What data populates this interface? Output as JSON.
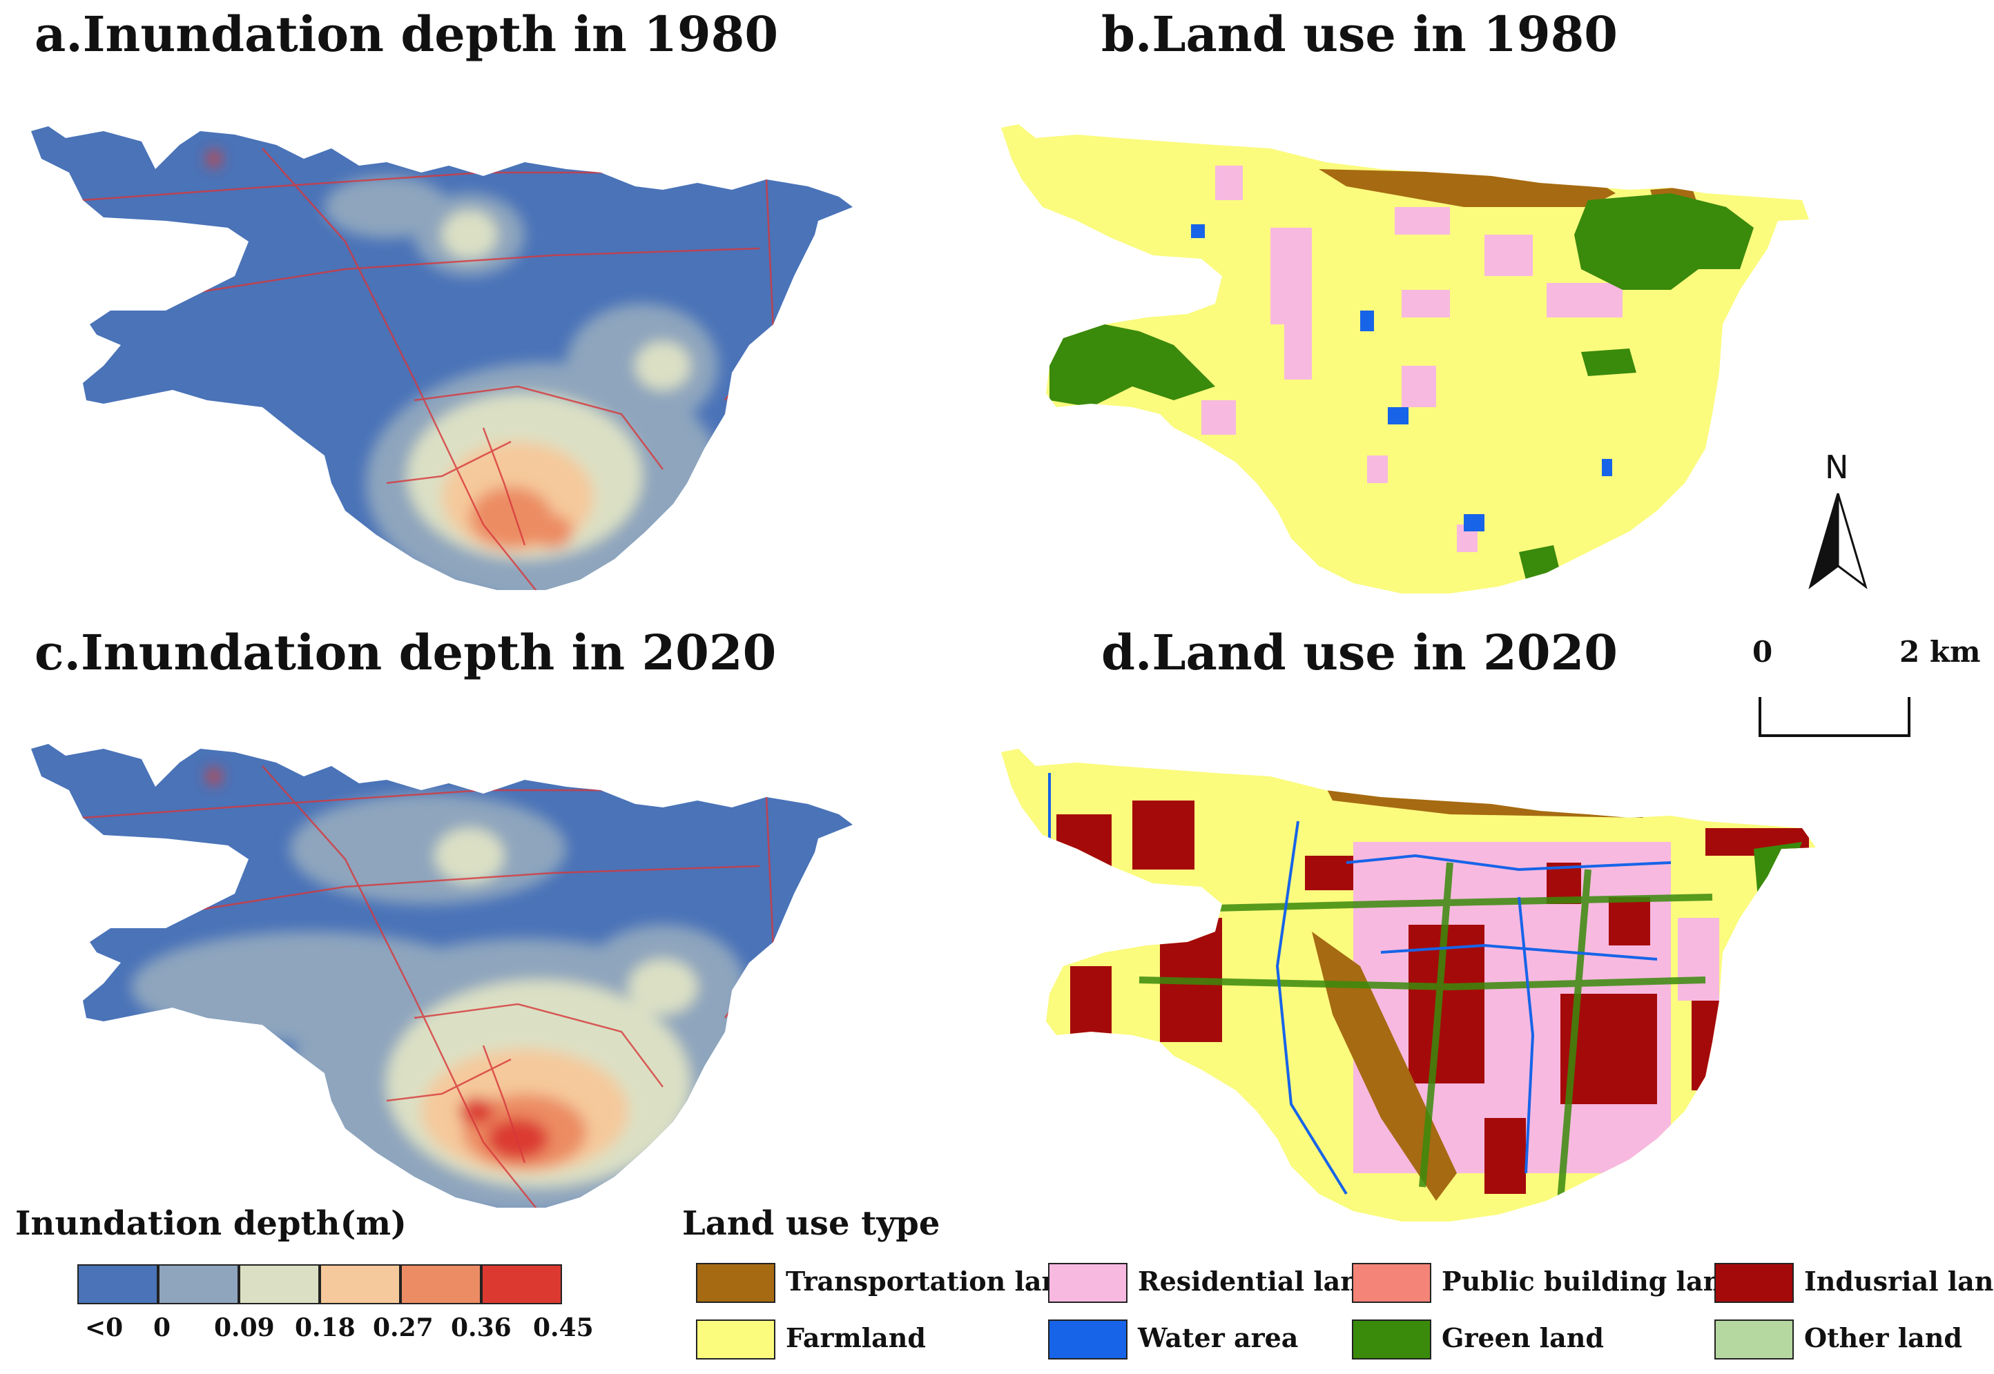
{
  "titles": {
    "a": "a.Inundation depth in 1980",
    "b": "b.Land use in 1980",
    "c": "c.Inundation depth in 2020",
    "d": "d.Land use in 2020"
  },
  "depth_legend": {
    "title": "Inundation depth(m)",
    "colors": [
      "#4a73b8",
      "#8ea5bd",
      "#dbe0c4",
      "#f5c99b",
      "#ec8c64",
      "#dc3a30"
    ],
    "labels": [
      "<0",
      "0",
      "0.09",
      "0.18",
      "0.27",
      "0.36",
      "0.45"
    ]
  },
  "landuse_legend": {
    "title": "Land use type",
    "items": [
      {
        "label": "Transportation land",
        "color": "#a66a12"
      },
      {
        "label": "Residential land",
        "color": "#f7b9e0"
      },
      {
        "label": "Public building land",
        "color": "#f48478"
      },
      {
        "label": "Indusrial land",
        "color": "#a50a0a"
      },
      {
        "label": "Farmland",
        "color": "#fbfb7e"
      },
      {
        "label": "Water area",
        "color": "#1764e8"
      },
      {
        "label": "Green land",
        "color": "#3a8a0c"
      },
      {
        "label": "Other land",
        "color": "#b5d8a0"
      }
    ]
  },
  "north_arrow": {
    "label": "N"
  },
  "scale_bar": {
    "start": "0",
    "end": "2 km"
  },
  "colors": {
    "road": "#d7373a",
    "river_blue": "#1764e8"
  }
}
